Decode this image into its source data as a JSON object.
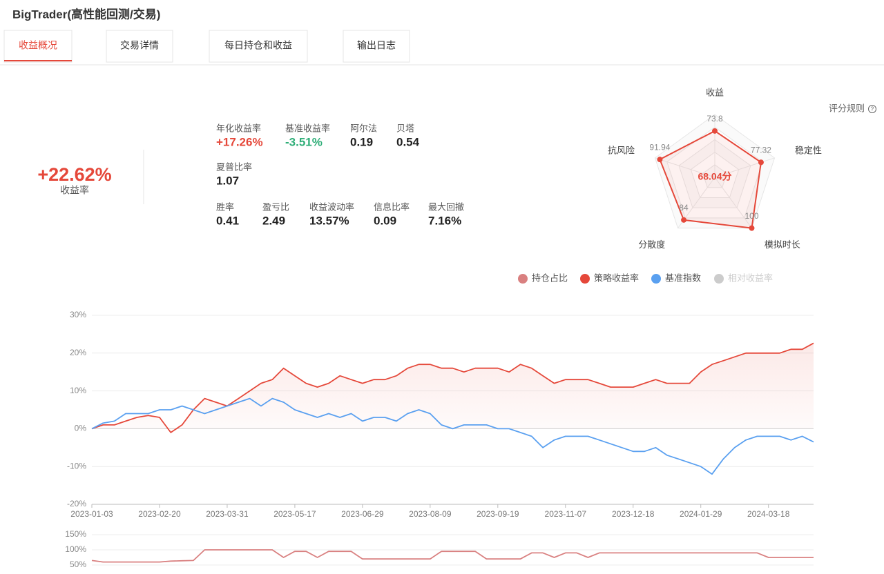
{
  "header": {
    "title": "BigTrader(高性能回测/交易)"
  },
  "tabs": {
    "items": [
      "收益概况",
      "交易详情",
      "每日持仓和收益",
      "输出日志"
    ],
    "active": 0
  },
  "summary": {
    "value": "+22.62%",
    "label": "收益率"
  },
  "metrics": {
    "rows": [
      [
        {
          "label": "年化收益率",
          "value": "+17.26%",
          "color": "#e5483a"
        },
        {
          "label": "基准收益率",
          "value": "-3.51%",
          "color": "#2fae78"
        },
        {
          "label": "阿尔法",
          "value": "0.19"
        },
        {
          "label": "贝塔",
          "value": "0.54"
        }
      ],
      [
        {
          "label": "夏普比率",
          "value": "1.07"
        }
      ],
      [
        {
          "label": "胜率",
          "value": "0.41"
        },
        {
          "label": "盈亏比",
          "value": "2.49"
        },
        {
          "label": "收益波动率",
          "value": "13.57%"
        },
        {
          "label": "信息比率",
          "value": "0.09"
        },
        {
          "label": "最大回撤",
          "value": "7.16%"
        }
      ]
    ]
  },
  "rules_link": "评分规则",
  "chart_data": [
    {
      "type": "radar",
      "categories": [
        "收益",
        "稳定性",
        "模拟时长",
        "分散度",
        "抗风险"
      ],
      "values": [
        73.8,
        77.32,
        100,
        84,
        91.94
      ],
      "rlim": [
        0,
        100
      ],
      "color": "#e5483a",
      "score": "68.04分"
    },
    {
      "type": "line",
      "categories": [
        "2023-01-03",
        null,
        null,
        null,
        null,
        null,
        "2023-02-20",
        null,
        null,
        null,
        null,
        null,
        "2023-03-31",
        null,
        null,
        null,
        null,
        null,
        "2023-05-17",
        null,
        null,
        null,
        null,
        null,
        "2023-06-29",
        null,
        null,
        null,
        null,
        null,
        "2023-08-09",
        null,
        null,
        null,
        null,
        null,
        "2023-09-19",
        null,
        null,
        null,
        null,
        null,
        "2023-11-07",
        null,
        null,
        null,
        null,
        null,
        "2023-12-18",
        null,
        null,
        null,
        null,
        null,
        "2024-01-29",
        null,
        null,
        null,
        null,
        null,
        "2024-03-18",
        null,
        null,
        null,
        null
      ],
      "ylim": [
        -20,
        30
      ],
      "yticks": [
        {
          "value": 30,
          "label": "30%"
        },
        {
          "value": 20,
          "label": "20%"
        },
        {
          "value": 10,
          "label": "10%"
        },
        {
          "value": 0,
          "label": "0%"
        },
        {
          "value": -10,
          "label": "-10%"
        },
        {
          "value": -20,
          "label": "-20%"
        }
      ],
      "y2lim": [
        0,
        150
      ],
      "y2ticks": [
        {
          "value": 150,
          "label": "150%"
        },
        {
          "value": 100,
          "label": "100%"
        },
        {
          "value": 50,
          "label": "50%"
        }
      ],
      "grid": true,
      "legend": "top-right",
      "series": [
        {
          "name": "持仓占比",
          "color": "#d98080",
          "axis": "y2",
          "values": [
            65,
            60,
            60,
            60,
            60,
            60,
            60,
            63,
            64,
            65,
            100,
            100,
            100,
            100,
            100,
            100,
            100,
            75,
            95,
            95,
            75,
            95,
            95,
            95,
            70,
            70,
            70,
            70,
            70,
            70,
            70,
            95,
            95,
            95,
            95,
            70,
            70,
            70,
            70,
            90,
            90,
            75,
            90,
            90,
            75,
            90,
            90,
            90,
            90,
            90,
            90,
            90,
            90,
            90,
            90,
            90,
            90,
            90,
            90,
            90,
            75,
            75,
            75,
            75,
            75
          ]
        },
        {
          "name": "策略收益率",
          "color": "#e5483a",
          "values": [
            0,
            1,
            1,
            2,
            3,
            3.5,
            3,
            -1,
            1,
            5,
            8,
            7,
            6,
            8,
            10,
            12,
            13,
            16,
            14,
            12,
            11,
            12,
            14,
            13,
            12,
            13,
            13,
            14,
            16,
            17,
            17,
            16,
            16,
            15,
            16,
            16,
            16,
            15,
            17,
            16,
            14,
            12,
            13,
            13,
            13,
            12,
            11,
            11,
            11,
            12,
            13,
            12,
            12,
            12,
            15,
            17,
            18,
            19,
            20,
            20,
            20,
            20,
            21,
            21,
            22.62
          ]
        },
        {
          "name": "基准指数",
          "color": "#5aa0f0",
          "values": [
            0,
            1.5,
            2,
            4,
            4,
            4,
            5,
            5,
            6,
            5,
            4,
            5,
            6,
            7,
            8,
            6,
            8,
            7,
            5,
            4,
            3,
            4,
            3,
            4,
            2,
            3,
            3,
            2,
            4,
            5,
            4,
            1,
            0,
            1,
            1,
            1,
            0,
            0,
            -1,
            -2,
            -5,
            -3,
            -2,
            -2,
            -2,
            -3,
            -4,
            -5,
            -6,
            -6,
            -5,
            -7,
            -8,
            -9,
            -10,
            -12,
            -8,
            -5,
            -3,
            -2,
            -2,
            -2,
            -3,
            -2,
            -3.51
          ]
        },
        {
          "name": "相对收益率",
          "color": "#cccccc",
          "hidden": true
        }
      ]
    }
  ]
}
